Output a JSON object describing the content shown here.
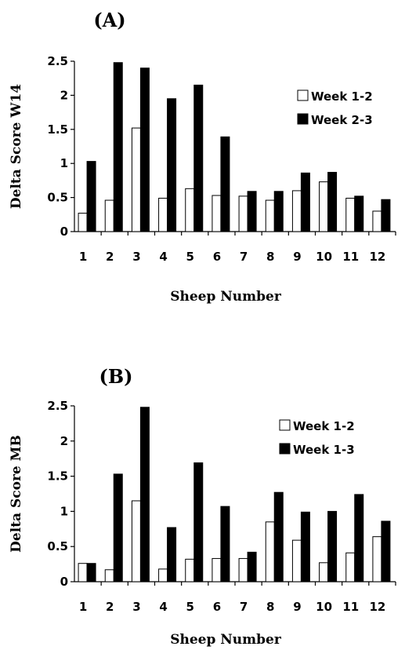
{
  "chart_data": [
    {
      "type": "bar",
      "title": "(A)",
      "xlabel": "Sheep Number",
      "ylabel": "Delta Score W14",
      "categories": [
        "1",
        "2",
        "3",
        "4",
        "5",
        "6",
        "7",
        "8",
        "9",
        "10",
        "11",
        "12"
      ],
      "ylim": [
        0,
        2.5
      ],
      "yticks": [
        "0",
        "0.5",
        "1",
        "1.5",
        "2",
        "2.5"
      ],
      "legend_position": "top-right",
      "series": [
        {
          "name": "Week 1-2",
          "color": "#ffffff",
          "values": [
            0.27,
            0.46,
            1.52,
            0.49,
            0.63,
            0.53,
            0.52,
            0.46,
            0.6,
            0.73,
            0.49,
            0.3
          ]
        },
        {
          "name": "Week 2-3",
          "color": "#000000",
          "values": [
            1.03,
            2.48,
            2.4,
            1.95,
            2.15,
            1.39,
            0.59,
            0.59,
            0.86,
            0.87,
            0.52,
            0.47
          ]
        }
      ]
    },
    {
      "type": "bar",
      "title": "(B)",
      "xlabel": "Sheep Number",
      "ylabel": "Delta Score MB",
      "categories": [
        "1",
        "2",
        "3",
        "4",
        "5",
        "6",
        "7",
        "8",
        "9",
        "10",
        "11",
        "12"
      ],
      "ylim": [
        0,
        2.5
      ],
      "yticks": [
        "0",
        "0.5",
        "1",
        "1.5",
        "2",
        "2.5"
      ],
      "legend_position": "top-right",
      "series": [
        {
          "name": "Week 1-2",
          "color": "#ffffff",
          "values": [
            0.26,
            0.17,
            1.15,
            0.18,
            0.32,
            0.33,
            0.33,
            0.85,
            0.59,
            0.27,
            0.41,
            0.64
          ]
        },
        {
          "name": "Week 1-3",
          "color": "#000000",
          "values": [
            0.26,
            1.53,
            2.48,
            0.77,
            1.69,
            1.07,
            0.42,
            1.27,
            0.99,
            1.0,
            1.24,
            0.86
          ]
        }
      ]
    }
  ]
}
